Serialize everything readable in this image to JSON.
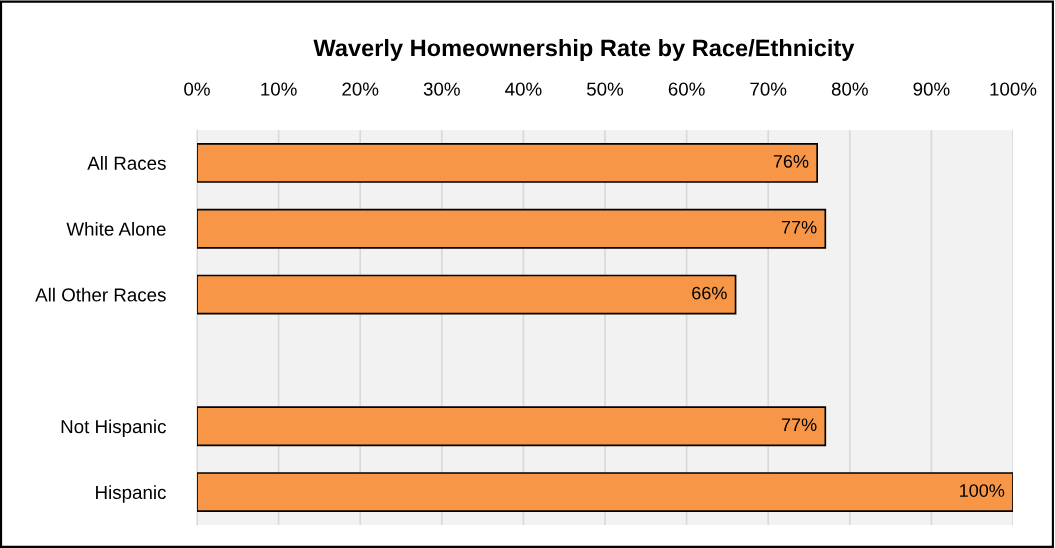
{
  "chart_data": {
    "type": "bar",
    "orientation": "horizontal",
    "title": "Waverly Homeownership Rate by Race/Ethnicity",
    "categories": [
      "All Races",
      "White Alone",
      "All Other Races",
      null,
      "Not Hispanic",
      "Hispanic"
    ],
    "values": [
      76,
      77,
      66,
      null,
      77,
      100
    ],
    "value_labels": [
      "76%",
      "77%",
      "66%",
      null,
      "77%",
      "100%"
    ],
    "color": "#f79646",
    "xlim": [
      0,
      100
    ],
    "xticks": [
      {
        "value": 0,
        "label": "0%"
      },
      {
        "value": 10,
        "label": "10%"
      },
      {
        "value": 20,
        "label": "20%"
      },
      {
        "value": 30,
        "label": "30%"
      },
      {
        "value": 40,
        "label": "40%"
      },
      {
        "value": 50,
        "label": "50%"
      },
      {
        "value": 60,
        "label": "60%"
      },
      {
        "value": 70,
        "label": "70%"
      },
      {
        "value": 80,
        "label": "80%"
      },
      {
        "value": 90,
        "label": "90%"
      },
      {
        "value": 100,
        "label": "100%"
      }
    ],
    "grid": "x"
  }
}
